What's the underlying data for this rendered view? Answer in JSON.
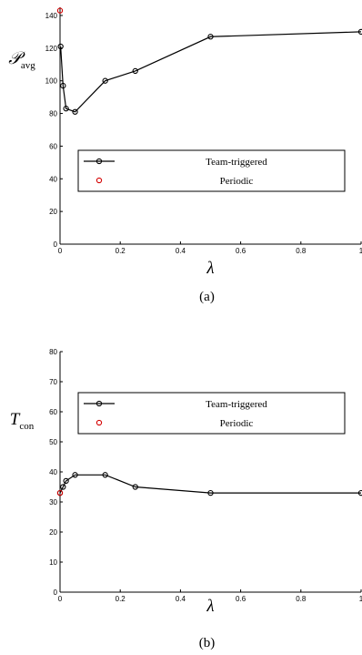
{
  "colors": {
    "team": "#000000",
    "periodic": "#d40000"
  },
  "chart_data": [
    {
      "type": "line",
      "panel_label": "(a)",
      "ylabel_main": "𝒫",
      "ylabel_sub": "avg",
      "xlabel": "λ",
      "xlim": [
        0,
        1
      ],
      "ylim": [
        0,
        145
      ],
      "xticks": [
        0,
        0.2,
        0.4,
        0.6,
        0.8,
        1
      ],
      "xtick_labels": [
        "0",
        "0.2",
        "0.4",
        "0.6",
        "0.8",
        "1"
      ],
      "yticks": [
        0,
        20,
        40,
        60,
        80,
        100,
        120,
        140
      ],
      "ytick_labels": [
        "0",
        "20",
        "40",
        "60",
        "80",
        "100",
        "120",
        "140"
      ],
      "legend_placement": "center-left",
      "series": [
        {
          "name": "Team-triggered",
          "style": "line-circle",
          "x": [
            0.002,
            0.01,
            0.02,
            0.05,
            0.15,
            0.25,
            0.5,
            1.0
          ],
          "y": [
            121,
            97,
            83,
            81,
            100,
            106,
            127,
            130
          ]
        },
        {
          "name": "Periodic",
          "style": "circle",
          "x": [
            0
          ],
          "y": [
            143
          ]
        }
      ]
    },
    {
      "type": "line",
      "panel_label": "(b)",
      "ylabel_main": "T",
      "ylabel_sub": "con",
      "xlabel": "λ",
      "xlim": [
        0,
        1
      ],
      "ylim": [
        0,
        80
      ],
      "xticks": [
        0,
        0.2,
        0.4,
        0.6,
        0.8,
        1
      ],
      "xtick_labels": [
        "0",
        "0.2",
        "0.4",
        "0.6",
        "0.8",
        "1"
      ],
      "yticks": [
        0,
        10,
        20,
        30,
        40,
        50,
        60,
        70,
        80
      ],
      "ytick_labels": [
        "0",
        "10",
        "20",
        "30",
        "40",
        "50",
        "60",
        "70",
        "80"
      ],
      "legend_placement": "upper-center",
      "series": [
        {
          "name": "Team-triggered",
          "style": "line-circle",
          "x": [
            0.0,
            0.01,
            0.02,
            0.05,
            0.15,
            0.25,
            0.5,
            1.0
          ],
          "y": [
            33,
            35,
            37,
            39,
            39,
            35,
            33,
            33
          ]
        },
        {
          "name": "Periodic",
          "style": "circle",
          "x": [
            0
          ],
          "y": [
            33
          ]
        }
      ]
    }
  ]
}
